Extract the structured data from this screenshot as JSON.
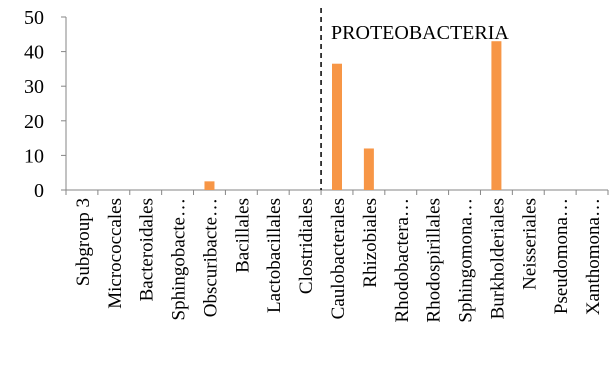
{
  "chart_data": {
    "type": "bar",
    "title": "",
    "xlabel": "",
    "ylabel": "",
    "ylim": [
      0,
      50
    ],
    "yticks": [
      0,
      10,
      20,
      30,
      40,
      50
    ],
    "grid": false,
    "legend": "none",
    "bar_color": "#f79646",
    "categories": [
      "Subgroup 3",
      "Micrococcales",
      "Bacteroidales",
      "Sphingobacte…",
      "Obscuribacte…",
      "Bacillales",
      "Lactobacillales",
      "Clostridiales",
      "Caulobacterales",
      "Rhizobiales",
      "Rhodobactera…",
      "Rhodospirillales",
      "Sphingomona…",
      "Burkholderiales",
      "Neisseriales",
      "Pseudomona…",
      "Xanthomona…"
    ],
    "values": [
      0,
      0,
      0,
      0,
      2.5,
      0,
      0,
      0,
      36.5,
      12,
      0,
      0,
      0,
      43,
      0,
      0,
      0
    ],
    "annotation": {
      "text": "PROTEOBACTERIA",
      "divider_after_category": "Clostridiales"
    }
  }
}
